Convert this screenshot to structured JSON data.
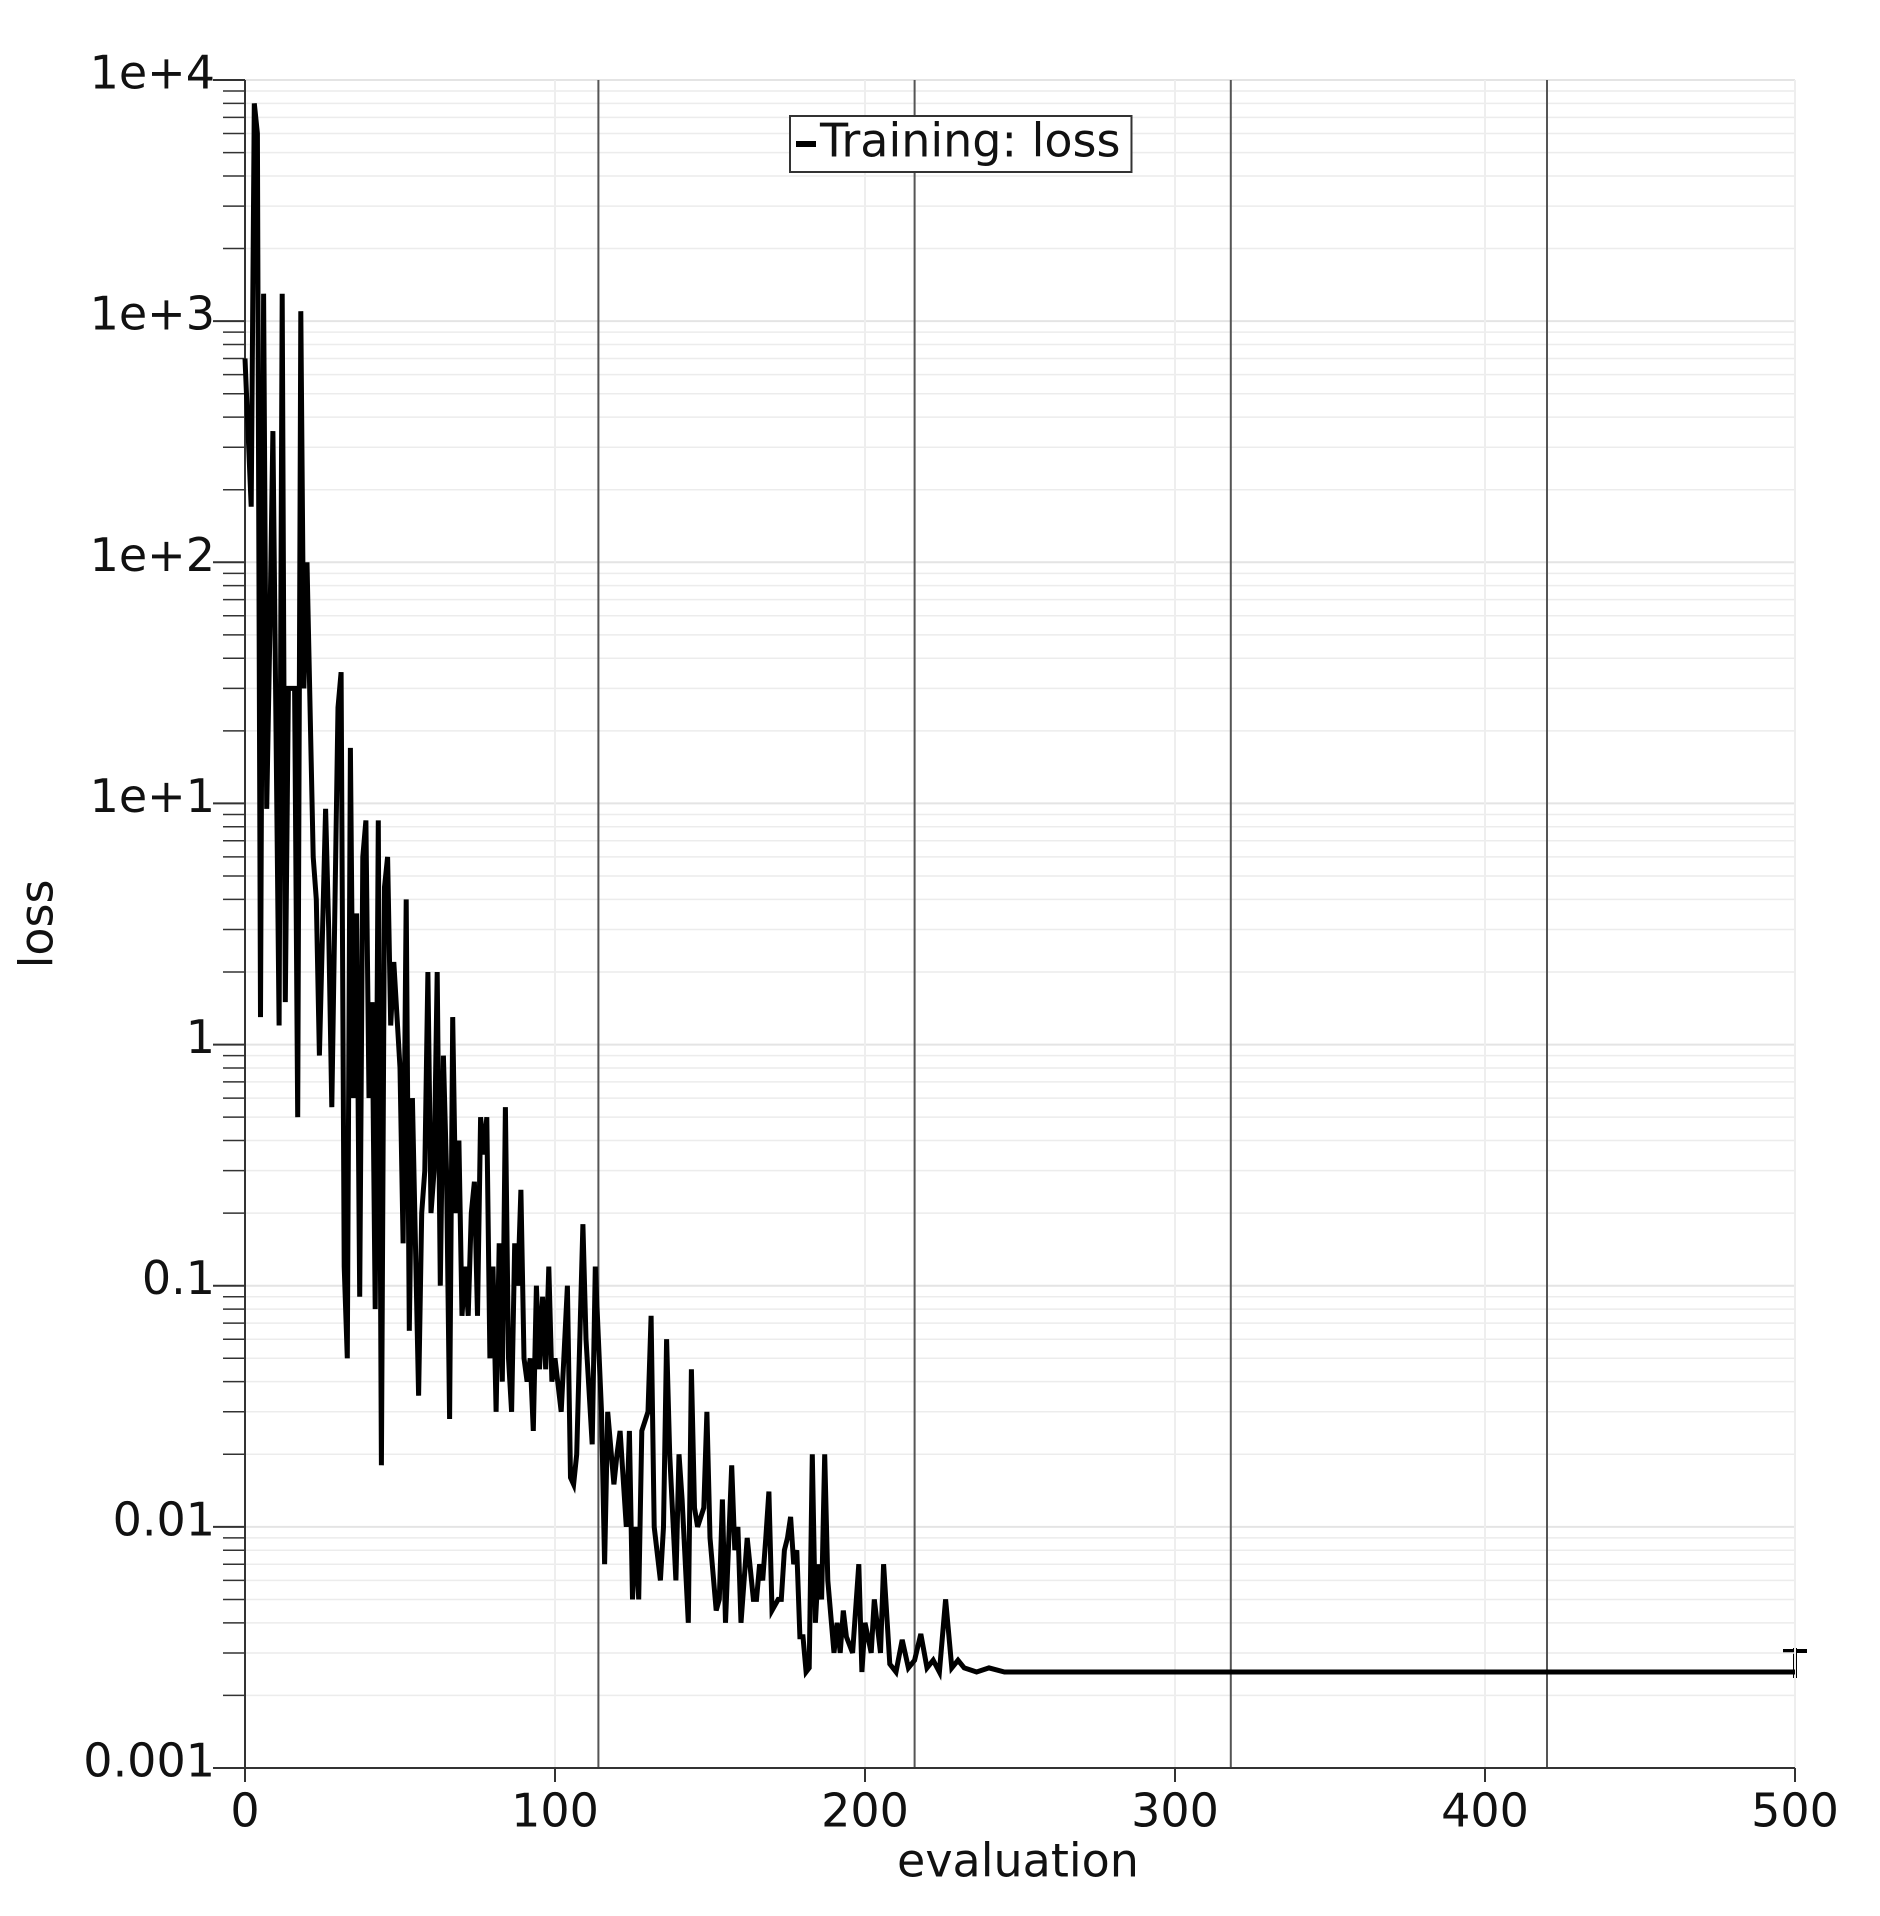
{
  "chart_data": {
    "type": "line",
    "xlabel": "evaluation",
    "ylabel": "loss",
    "xlim": [
      0,
      500
    ],
    "xticks": [
      0,
      100,
      200,
      300,
      400,
      500
    ],
    "ylim": [
      0.001,
      10000
    ],
    "log_y": true,
    "grid": true,
    "yticks": [
      {
        "value": 0.001,
        "label": "0.001"
      },
      {
        "value": 0.01,
        "label": "0.01"
      },
      {
        "value": 0.1,
        "label": "0.1"
      },
      1,
      {
        "value": 10,
        "label": "1e+1"
      },
      {
        "value": 100,
        "label": "1e+2"
      },
      {
        "value": 1000,
        "label": "1e+3"
      },
      {
        "value": 10000,
        "label": "1e+4"
      }
    ],
    "vlines": [
      114,
      216,
      318,
      420
    ],
    "legend": "top",
    "x": [
      0,
      2,
      3,
      4,
      5,
      6,
      7,
      8,
      9,
      11,
      12,
      13,
      14,
      16,
      17,
      18,
      19,
      20,
      22,
      23,
      24,
      26,
      27,
      28,
      30,
      31,
      32,
      33,
      34,
      35,
      36,
      37,
      38,
      39,
      40,
      41,
      42,
      43,
      44,
      45,
      46,
      47,
      48,
      50,
      51,
      52,
      53,
      54,
      56,
      57,
      58,
      59,
      60,
      61,
      62,
      63,
      64,
      65,
      66,
      67,
      68,
      69,
      70,
      71,
      72,
      73,
      74,
      75,
      76,
      77,
      78,
      79,
      80,
      81,
      82,
      83,
      84,
      85,
      86,
      87,
      88,
      89,
      90,
      91,
      92,
      93,
      94,
      95,
      96,
      97,
      98,
      99,
      100,
      102,
      104,
      105,
      106,
      107,
      109,
      110,
      112,
      113,
      115,
      116,
      117,
      119,
      120,
      121,
      123,
      124,
      125,
      126,
      127,
      128,
      130,
      131,
      132,
      134,
      135,
      136,
      137,
      139,
      140,
      141,
      143,
      144,
      145,
      146,
      148,
      149,
      150,
      152,
      153,
      154,
      155,
      157,
      158,
      159,
      160,
      161,
      162,
      164,
      165,
      166,
      167,
      168,
      169,
      170,
      172,
      173,
      174,
      175,
      176,
      177,
      178,
      179,
      180,
      181,
      182,
      183,
      184,
      185,
      186,
      187,
      188,
      190,
      191,
      192,
      193,
      194,
      196,
      198,
      199,
      200,
      202,
      203,
      205,
      206,
      208,
      210,
      212,
      214,
      216,
      218,
      220,
      222,
      224,
      226,
      228,
      230,
      232,
      236,
      240,
      245,
      250,
      260,
      300,
      350,
      400,
      450,
      500
    ],
    "series": [
      {
        "name": "Training: loss",
        "color": "#000000",
        "values": [
          700,
          170,
          8000,
          6000,
          1.3,
          1300,
          9.5,
          50,
          350,
          1.2,
          1300,
          1.5,
          30,
          30,
          0.5,
          1100,
          30,
          100,
          6,
          4,
          0.9,
          9.5,
          3,
          0.55,
          25,
          35,
          0.12,
          0.05,
          17,
          0.6,
          3.5,
          0.09,
          6,
          8.5,
          0.6,
          1.5,
          0.08,
          8.5,
          0.018,
          4.5,
          6,
          1.2,
          2.2,
          0.8,
          0.15,
          4,
          0.065,
          0.6,
          0.035,
          0.2,
          0.3,
          2,
          0.2,
          0.3,
          2,
          0.1,
          0.9,
          0.3,
          0.028,
          1.3,
          0.2,
          0.4,
          0.075,
          0.12,
          0.075,
          0.2,
          0.27,
          0.075,
          0.5,
          0.35,
          0.5,
          0.05,
          0.12,
          0.03,
          0.15,
          0.04,
          0.55,
          0.05,
          0.03,
          0.15,
          0.1,
          0.25,
          0.05,
          0.04,
          0.05,
          0.025,
          0.1,
          0.045,
          0.09,
          0.045,
          0.12,
          0.04,
          0.05,
          0.03,
          0.1,
          0.016,
          0.015,
          0.02,
          0.18,
          0.06,
          0.022,
          0.12,
          0.03,
          0.007,
          0.03,
          0.015,
          0.02,
          0.025,
          0.01,
          0.025,
          0.005,
          0.01,
          0.005,
          0.025,
          0.03,
          0.075,
          0.01,
          0.006,
          0.01,
          0.06,
          0.02,
          0.006,
          0.02,
          0.013,
          0.004,
          0.045,
          0.012,
          0.01,
          0.012,
          0.03,
          0.009,
          0.0045,
          0.005,
          0.013,
          0.004,
          0.018,
          0.008,
          0.01,
          0.004,
          0.006,
          0.009,
          0.005,
          0.005,
          0.007,
          0.006,
          0.009,
          0.014,
          0.0045,
          0.005,
          0.005,
          0.008,
          0.009,
          0.011,
          0.007,
          0.008,
          0.0035,
          0.0035,
          0.0025,
          0.0026,
          0.02,
          0.004,
          0.007,
          0.005,
          0.02,
          0.006,
          0.003,
          0.004,
          0.003,
          0.0045,
          0.0035,
          0.003,
          0.007,
          0.0025,
          0.004,
          0.003,
          0.005,
          0.003,
          0.007,
          0.0027,
          0.0025,
          0.0034,
          0.0026,
          0.0028,
          0.0036,
          0.0026,
          0.0028,
          0.0025,
          0.005,
          0.0026,
          0.0028,
          0.0026,
          0.0025,
          0.0026,
          0.0025,
          0.0025,
          0.0025,
          0.0025,
          0.0025,
          0.0025,
          0.0025,
          0.0025
        ]
      }
    ]
  }
}
